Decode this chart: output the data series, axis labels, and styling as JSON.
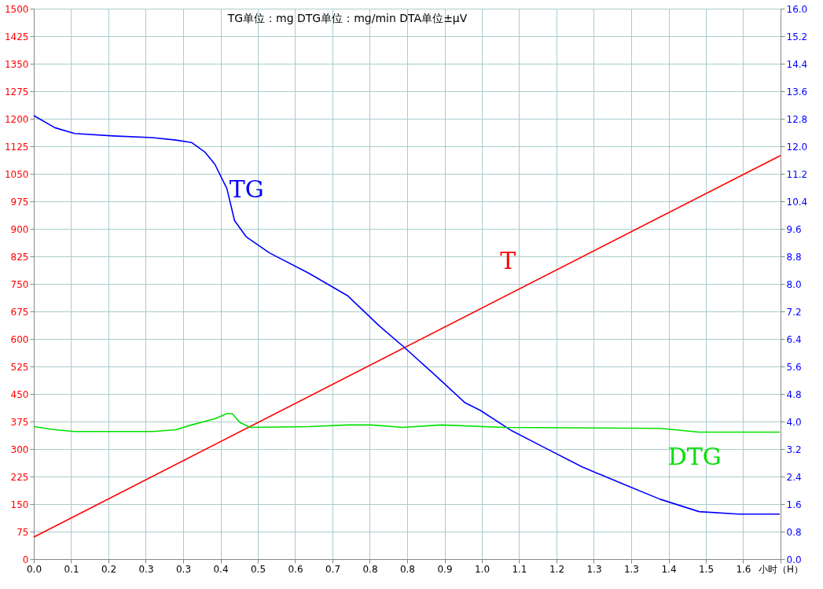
{
  "chart_data": {
    "type": "line",
    "title": "TG单位：mg    DTG单位：mg/min      DTA单位±μV",
    "xlim": [
      0,
      1.6667
    ],
    "xticks": [
      {
        "value": 0,
        "label": "0.0"
      },
      {
        "value": 0.0833,
        "label": "0.1"
      },
      {
        "value": 0.1667,
        "label": "0.2"
      },
      {
        "value": 0.25,
        "label": "0.3"
      },
      {
        "value": 0.3333,
        "label": "0.3"
      },
      {
        "value": 0.4167,
        "label": "0.4"
      },
      {
        "value": 0.5,
        "label": "0.5"
      },
      {
        "value": 0.5833,
        "label": "0.6"
      },
      {
        "value": 0.6667,
        "label": "0.7"
      },
      {
        "value": 0.75,
        "label": "0.8"
      },
      {
        "value": 0.8333,
        "label": "0.8"
      },
      {
        "value": 0.9167,
        "label": "0.9"
      },
      {
        "value": 1.0,
        "label": "1.0"
      },
      {
        "value": 1.0833,
        "label": "1.1"
      },
      {
        "value": 1.1667,
        "label": "1.2"
      },
      {
        "value": 1.25,
        "label": "1.3"
      },
      {
        "value": 1.3333,
        "label": "1.3"
      },
      {
        "value": 1.4167,
        "label": "1.4"
      },
      {
        "value": 1.5,
        "label": "1.5"
      },
      {
        "value": 1.5833,
        "label": "1.6"
      },
      {
        "value": 1.6667,
        "label": "小时（H）"
      }
    ],
    "ylim": [
      0,
      1500
    ],
    "yticks": [
      0,
      75,
      150,
      225,
      300,
      375,
      450,
      525,
      600,
      675,
      750,
      825,
      900,
      975,
      1050,
      1125,
      1200,
      1275,
      1350,
      1425,
      1500
    ],
    "y2lim": [
      0,
      16
    ],
    "y2ticks": [
      {
        "value": 0,
        "label": "0.0"
      },
      0.8,
      1.6,
      2.4,
      3.2,
      {
        "value": 4,
        "label": "4.0"
      },
      4.8,
      5.6,
      6.4,
      7.2,
      {
        "value": 8,
        "label": "8.0"
      },
      8.8,
      9.6,
      10.4,
      11.2,
      {
        "value": 12,
        "label": "12.0"
      },
      12.8,
      13.6,
      14.4,
      15.2,
      {
        "value": 16,
        "label": "16.0"
      }
    ],
    "grid": true,
    "legend": false,
    "line_style": "solid",
    "series": [
      {
        "name": "T",
        "color": "#ff0000",
        "x": [
          0,
          1.6667
        ],
        "values": [
          60,
          1100
        ]
      },
      {
        "name": "TG",
        "color": "#0000ff",
        "axis": "y2",
        "x": [
          0,
          0.047,
          0.091,
          0.178,
          0.265,
          0.317,
          0.352,
          0.382,
          0.404,
          0.431,
          0.448,
          0.474,
          0.526,
          0.614,
          0.701,
          0.771,
          0.823,
          0.893,
          0.962,
          0.997,
          1.067,
          1.137,
          1.224,
          1.31,
          1.398,
          1.485,
          1.573,
          1.665
        ],
        "values": [
          12.89,
          12.54,
          12.37,
          12.3,
          12.25,
          12.18,
          12.11,
          11.83,
          11.48,
          10.77,
          9.84,
          9.37,
          8.9,
          8.31,
          7.65,
          6.78,
          6.2,
          5.38,
          4.55,
          4.32,
          3.73,
          3.26,
          2.68,
          2.21,
          1.74,
          1.38,
          1.31,
          1.31
        ]
      },
      {
        "name": "DTG",
        "color": "#00e000",
        "axis": "y2",
        "x": [
          0,
          0.047,
          0.091,
          0.265,
          0.317,
          0.352,
          0.404,
          0.431,
          0.443,
          0.46,
          0.483,
          0.614,
          0.701,
          0.753,
          0.823,
          0.91,
          1.049,
          1.398,
          1.485,
          1.665
        ],
        "values": [
          3.85,
          3.76,
          3.71,
          3.71,
          3.76,
          3.9,
          4.08,
          4.23,
          4.23,
          3.97,
          3.83,
          3.85,
          3.9,
          3.9,
          3.83,
          3.9,
          3.83,
          3.8,
          3.69,
          3.69
        ]
      }
    ]
  }
}
